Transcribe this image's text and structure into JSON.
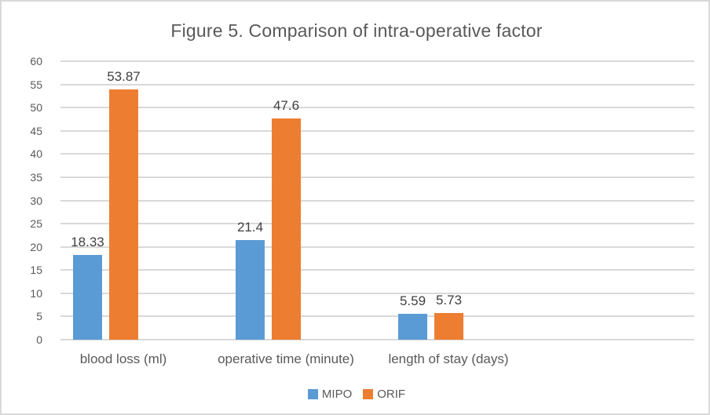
{
  "title": "Figure 5. Comparison of intra-operative factor",
  "colors": {
    "series_mipo": "#5B9BD5",
    "series_orif": "#ED7D31",
    "gridline": "#D9D9D9",
    "frame_border": "#D9D9D9",
    "title_text": "#595959",
    "tick_text": "#595959",
    "category_text": "#595959",
    "data_label_text": "#404040",
    "background": "#FFFFFF"
  },
  "chart_data": {
    "type": "bar",
    "title": "Figure 5. Comparison of intra-operative factor",
    "categories": [
      "blood loss (ml)",
      "operative time (minute)",
      "length of stay (days)"
    ],
    "series": [
      {
        "name": "MIPO",
        "color": "#5B9BD5",
        "values": [
          18.33,
          21.4,
          5.59
        ],
        "value_labels": [
          "18.33",
          "21.4",
          "5.59"
        ]
      },
      {
        "name": "ORIF",
        "color": "#ED7D31",
        "values": [
          53.87,
          47.6,
          5.73
        ],
        "value_labels": [
          "53.87",
          "47.6",
          "5.73"
        ]
      }
    ],
    "xlabel": "",
    "ylabel": "",
    "ylim": [
      0,
      60
    ],
    "ytick_step": 5,
    "ytick_labels": [
      "0",
      "5",
      "10",
      "15",
      "20",
      "25",
      "30",
      "35",
      "40",
      "45",
      "50",
      "55",
      "60"
    ],
    "grid": true,
    "legend_position": "bottom-center"
  },
  "legend": {
    "items": [
      {
        "label": "MIPO",
        "color": "#5B9BD5"
      },
      {
        "label": "ORIF",
        "color": "#ED7D31"
      }
    ]
  }
}
